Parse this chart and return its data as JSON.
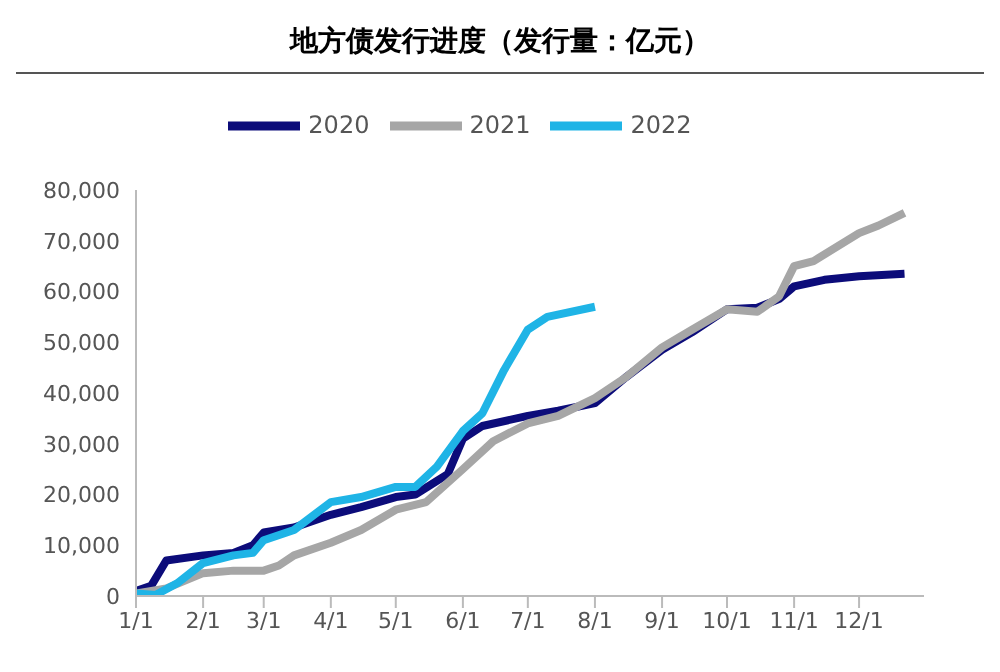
{
  "chart_data": {
    "type": "line",
    "title": "地方债发行进度（发行量：亿元）",
    "legend": "top",
    "grid": false,
    "marker": "none",
    "line_style": "solid",
    "xlim": [
      "--01-01",
      "--12-31"
    ],
    "xticks": [
      {
        "value": "--01-01",
        "label": "1/1"
      },
      {
        "value": "--02-01",
        "label": "2/1"
      },
      {
        "value": "--03-01",
        "label": "3/1"
      },
      {
        "value": "--04-01",
        "label": "4/1"
      },
      {
        "value": "--05-01",
        "label": "5/1"
      },
      {
        "value": "--06-01",
        "label": "6/1"
      },
      {
        "value": "--07-01",
        "label": "7/1"
      },
      {
        "value": "--08-01",
        "label": "8/1"
      },
      {
        "value": "--09-01",
        "label": "9/1"
      },
      {
        "value": "--10-01",
        "label": "10/1"
      },
      {
        "value": "--11-01",
        "label": "11/1"
      },
      {
        "value": "--12-01",
        "label": "12/1"
      }
    ],
    "ylim": [
      0,
      80000
    ],
    "yticks": [
      0,
      {
        "value": 10000,
        "label": "10,000"
      },
      {
        "value": 20000,
        "label": "20,000"
      },
      {
        "value": 30000,
        "label": "30,000"
      },
      {
        "value": 40000,
        "label": "40,000"
      },
      {
        "value": 50000,
        "label": "50,000"
      },
      {
        "value": 60000,
        "label": "60,000"
      },
      {
        "value": 70000,
        "label": "70,000"
      },
      {
        "value": 80000,
        "label": "80,000"
      }
    ],
    "series": [
      {
        "name": "2020",
        "color": "#0c0c7a",
        "x": [
          "--01-01",
          "--01-08",
          "--01-15",
          "--02-01",
          "--02-15",
          "--02-24",
          "--03-01",
          "--03-15",
          "--04-01",
          "--04-15",
          "--05-01",
          "--05-10",
          "--05-25",
          "--06-01",
          "--06-10",
          "--07-01",
          "--07-15",
          "--08-01",
          "--08-15",
          "--09-01",
          "--09-15",
          "--10-01",
          "--10-15",
          "--10-25",
          "--11-01",
          "--11-15",
          "--12-01",
          "--12-22"
        ],
        "values": [
          1000,
          2000,
          7000,
          8000,
          8500,
          10000,
          12500,
          13500,
          16000,
          17500,
          19500,
          20000,
          24000,
          31000,
          33500,
          35500,
          36500,
          38000,
          43000,
          48500,
          52000,
          56500,
          56800,
          58500,
          61000,
          62300,
          63000,
          63500
        ]
      },
      {
        "name": "2021",
        "color": "#a6a6a6",
        "x": [
          "--01-01",
          "--01-15",
          "--02-01",
          "--02-15",
          "--03-01",
          "--03-08",
          "--03-15",
          "--04-01",
          "--04-15",
          "--05-01",
          "--05-15",
          "--06-01",
          "--06-15",
          "--07-01",
          "--07-15",
          "--08-01",
          "--08-15",
          "--09-01",
          "--09-15",
          "--10-01",
          "--10-15",
          "--10-25",
          "--11-01",
          "--11-10",
          "--12-01",
          "--12-10",
          "--12-22"
        ],
        "values": [
          500,
          1500,
          4500,
          5000,
          5000,
          6000,
          8000,
          10500,
          13000,
          17000,
          18500,
          25000,
          30500,
          34000,
          35500,
          39000,
          43000,
          49000,
          52500,
          56500,
          56000,
          59000,
          65000,
          66000,
          71500,
          73000,
          75500
        ]
      },
      {
        "name": "2022",
        "color": "#1fb4e6",
        "x": [
          "--01-01",
          "--01-10",
          "--01-20",
          "--02-01",
          "--02-15",
          "--02-24",
          "--03-01",
          "--03-15",
          "--04-01",
          "--04-15",
          "--05-01",
          "--05-10",
          "--05-20",
          "--06-01",
          "--06-10",
          "--06-20",
          "--07-01",
          "--07-10",
          "--08-01"
        ],
        "values": [
          500,
          200,
          2500,
          6500,
          8000,
          8500,
          11000,
          13000,
          18500,
          19500,
          21500,
          21500,
          25500,
          32500,
          36000,
          44500,
          52500,
          55000,
          57000
        ]
      }
    ]
  }
}
